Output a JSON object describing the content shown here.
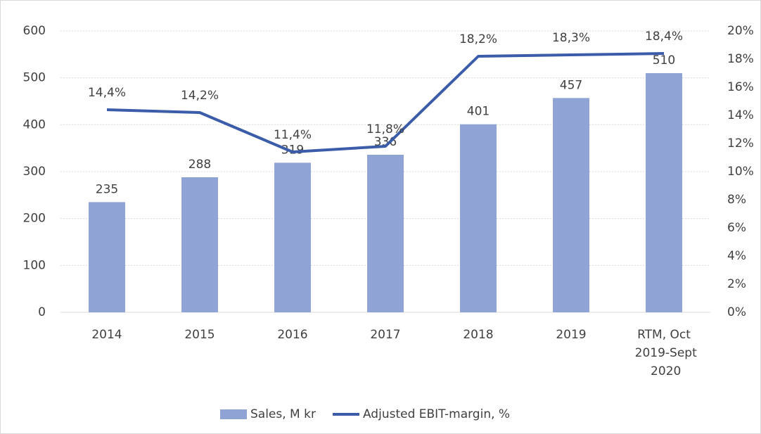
{
  "chart_data": {
    "type": "bar-line",
    "categories": [
      "2014",
      "2015",
      "2016",
      "2017",
      "2018",
      "2019",
      "RTM, Oct 2019-Sept 2020"
    ],
    "series": [
      {
        "name": "Sales, M kr",
        "type": "bar",
        "color": "#8fa3d5",
        "values": [
          235,
          288,
          319,
          336,
          401,
          457,
          510
        ]
      },
      {
        "name": "Adjusted EBIT-margin, %",
        "type": "line",
        "axis": "y2",
        "color": "#3b5ca8",
        "values": [
          14.4,
          14.2,
          11.4,
          11.8,
          18.2,
          18.3,
          18.4
        ],
        "value_labels": [
          "14,4%",
          "14,2%",
          "11,4%",
          "11,8%",
          "18,2%",
          "18,3%",
          "18,4%"
        ]
      }
    ],
    "ylim": [
      0,
      600
    ],
    "yticks": [
      0,
      100,
      200,
      300,
      400,
      500,
      600
    ],
    "y2lim": [
      0,
      20
    ],
    "y2ticks": [
      {
        "value": 0,
        "label": "0%"
      },
      {
        "value": 2,
        "label": "2%"
      },
      {
        "value": 4,
        "label": "4%"
      },
      {
        "value": 6,
        "label": "6%"
      },
      {
        "value": 8,
        "label": "8%"
      },
      {
        "value": 10,
        "label": "10%"
      },
      {
        "value": 12,
        "label": "12%"
      },
      {
        "value": 14,
        "label": "14%"
      },
      {
        "value": 16,
        "label": "16%"
      },
      {
        "value": 18,
        "label": "18%"
      },
      {
        "value": 20,
        "label": "20%"
      }
    ],
    "grid": true,
    "legend": "bottom"
  }
}
